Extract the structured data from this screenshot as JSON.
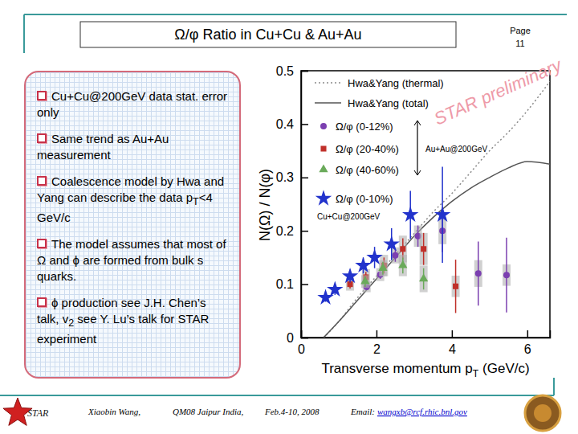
{
  "slide": {
    "title": "Ω/φ Ratio in Cu+Cu & Au+Au",
    "page": [
      "Page",
      "11"
    ],
    "bullets": [
      [
        {
          "text": "Cu+Cu@200GeV data stat. error only"
        }
      ],
      [
        {
          "text": "Same trend as Au+Au measurement"
        }
      ],
      [
        {
          "text": "Coalescence model by Hwa and Yang can describe the data p"
        },
        {
          "text": "T",
          "sub": true
        },
        {
          "text": "<4 GeV/c"
        }
      ],
      [
        {
          "text": "The model assumes that most of Ω and ϕ are formed from bulk s quarks."
        }
      ],
      [
        {
          "text": "ϕ production see J.H. Chen’s talk, v"
        },
        {
          "text": "2",
          "sub": true
        },
        {
          "text": " see Y. Lu’s talk for STAR experiment"
        }
      ]
    ],
    "footer": {
      "logo": "STAR",
      "author": "Xiaobin Wang,",
      "conference": "QM08 Jaipur India,",
      "date": "Feb.4-10, 2008",
      "email_label": "Email:",
      "email": "wangxb@rcf.rhic.bnl.gov"
    }
  },
  "chart_data": {
    "type": "scatter",
    "ylabel": "N(Ω) / N(φ)",
    "xlabel": "Transverse momentum p",
    "xlabel_sub": "T",
    "xlabel_unit": "(GeV/c)",
    "xlim": [
      0,
      6.6
    ],
    "ylim": [
      0,
      0.5
    ],
    "xticks": [
      0,
      2,
      4,
      6
    ],
    "yticks": [
      0,
      0.1,
      0.2,
      0.3,
      0.4,
      0.5
    ],
    "legend": "top-left",
    "series": [
      {
        "name": "Hwa&Yang (thermal)",
        "type": "line",
        "line_style": "dotted",
        "color": "#8a8a8a",
        "x": [
          0.6,
          1,
          1.5,
          2,
          2.5,
          3,
          3.5,
          4,
          4.5,
          5,
          5.5,
          6,
          6.6
        ],
        "values": [
          0,
          0.03,
          0.075,
          0.115,
          0.155,
          0.195,
          0.235,
          0.27,
          0.31,
          0.35,
          0.385,
          0.425,
          0.48
        ]
      },
      {
        "name": "Hwa&Yang (total)",
        "type": "line",
        "line_style": "solid",
        "color": "#555555",
        "x": [
          0.6,
          1,
          1.5,
          2,
          2.5,
          3,
          3.5,
          4,
          4.5,
          5,
          5.5,
          6,
          6.6
        ],
        "values": [
          0,
          0.03,
          0.07,
          0.11,
          0.15,
          0.19,
          0.225,
          0.255,
          0.28,
          0.3,
          0.318,
          0.33,
          0.325
        ]
      },
      {
        "name": "Ω/φ (0-12%)",
        "type": "scatter",
        "marker": "circle",
        "color": "#7b3fb0",
        "x": [
          1.74,
          2.1,
          2.5,
          3.1,
          3.75,
          4.7,
          5.45
        ],
        "values": [
          0.095,
          0.118,
          0.154,
          0.19,
          0.2,
          0.12,
          0.117
        ],
        "errors": [
          0.006,
          0.008,
          0.012,
          0.02,
          0.04,
          0.06,
          0.07
        ],
        "sys": [
          0.01,
          0.012,
          0.015,
          0.02,
          0.025,
          0.025,
          0.02
        ]
      },
      {
        "name": "Ω/φ (20-40%)",
        "type": "scatter",
        "marker": "square",
        "color": "#c0302a",
        "x": [
          1.3,
          1.72,
          2.2,
          2.7,
          3.25,
          4.1
        ],
        "values": [
          0.1,
          0.113,
          0.135,
          0.166,
          0.166,
          0.096
        ],
        "errors": [
          0.008,
          0.01,
          0.015,
          0.02,
          0.03,
          0.05
        ],
        "sys": [
          0.012,
          0.015,
          0.02,
          0.025,
          0.03,
          0.02
        ]
      },
      {
        "name": "Ω/φ (40-60%)",
        "type": "scatter",
        "marker": "triangle",
        "color": "#6aaa5a",
        "x": [
          1.7,
          2.17,
          2.7,
          3.25
        ],
        "values": [
          0.105,
          0.13,
          0.135,
          0.11
        ],
        "errors": [
          0.01,
          0.012,
          0.015,
          0.02
        ],
        "sys": [
          0.012,
          0.015,
          0.02,
          0.025
        ]
      },
      {
        "name": "Ω/φ (0-10%)",
        "type": "scatter",
        "marker": "star",
        "color": "#2233cc",
        "x": [
          0.65,
          0.9,
          1.3,
          1.65,
          1.95,
          2.4,
          2.9,
          3.75
        ],
        "values": [
          0.075,
          0.09,
          0.115,
          0.135,
          0.15,
          0.175,
          0.23,
          0.23
        ],
        "errors": [
          0.008,
          0.01,
          0.012,
          0.015,
          0.02,
          0.03,
          0.045,
          0.09
        ]
      }
    ],
    "annotations": [
      "Au+Au@200GeV",
      "Cu+Cu@200GeV",
      "STAR preliminary"
    ]
  }
}
